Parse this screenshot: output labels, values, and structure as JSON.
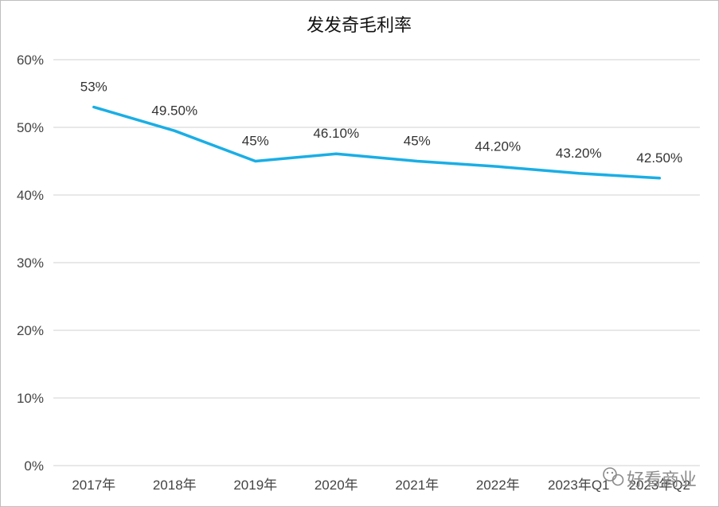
{
  "chart_data": {
    "type": "line",
    "title": "发发奇毛利率",
    "categories": [
      "2017年",
      "2018年",
      "2019年",
      "2020年",
      "2021年",
      "2022年",
      "2023年Q1",
      "2023年Q2"
    ],
    "series": [
      {
        "values": [
          53,
          49.5,
          45,
          46.1,
          45,
          44.2,
          43.2,
          42.5
        ],
        "data_labels": [
          "53%",
          "49.50%",
          "45%",
          "46.10%",
          "45%",
          "44.20%",
          "43.20%",
          "42.50%"
        ],
        "color": "#1aaee5"
      }
    ],
    "ylim": [
      0,
      60
    ],
    "yticks": [
      "0%",
      "10%",
      "20%",
      "30%",
      "40%",
      "50%",
      "60%"
    ],
    "xlabel": "",
    "ylabel": "",
    "grid": true,
    "legend": "none"
  },
  "watermark": {
    "text": "好看商业",
    "icon": "wechat-icon"
  }
}
